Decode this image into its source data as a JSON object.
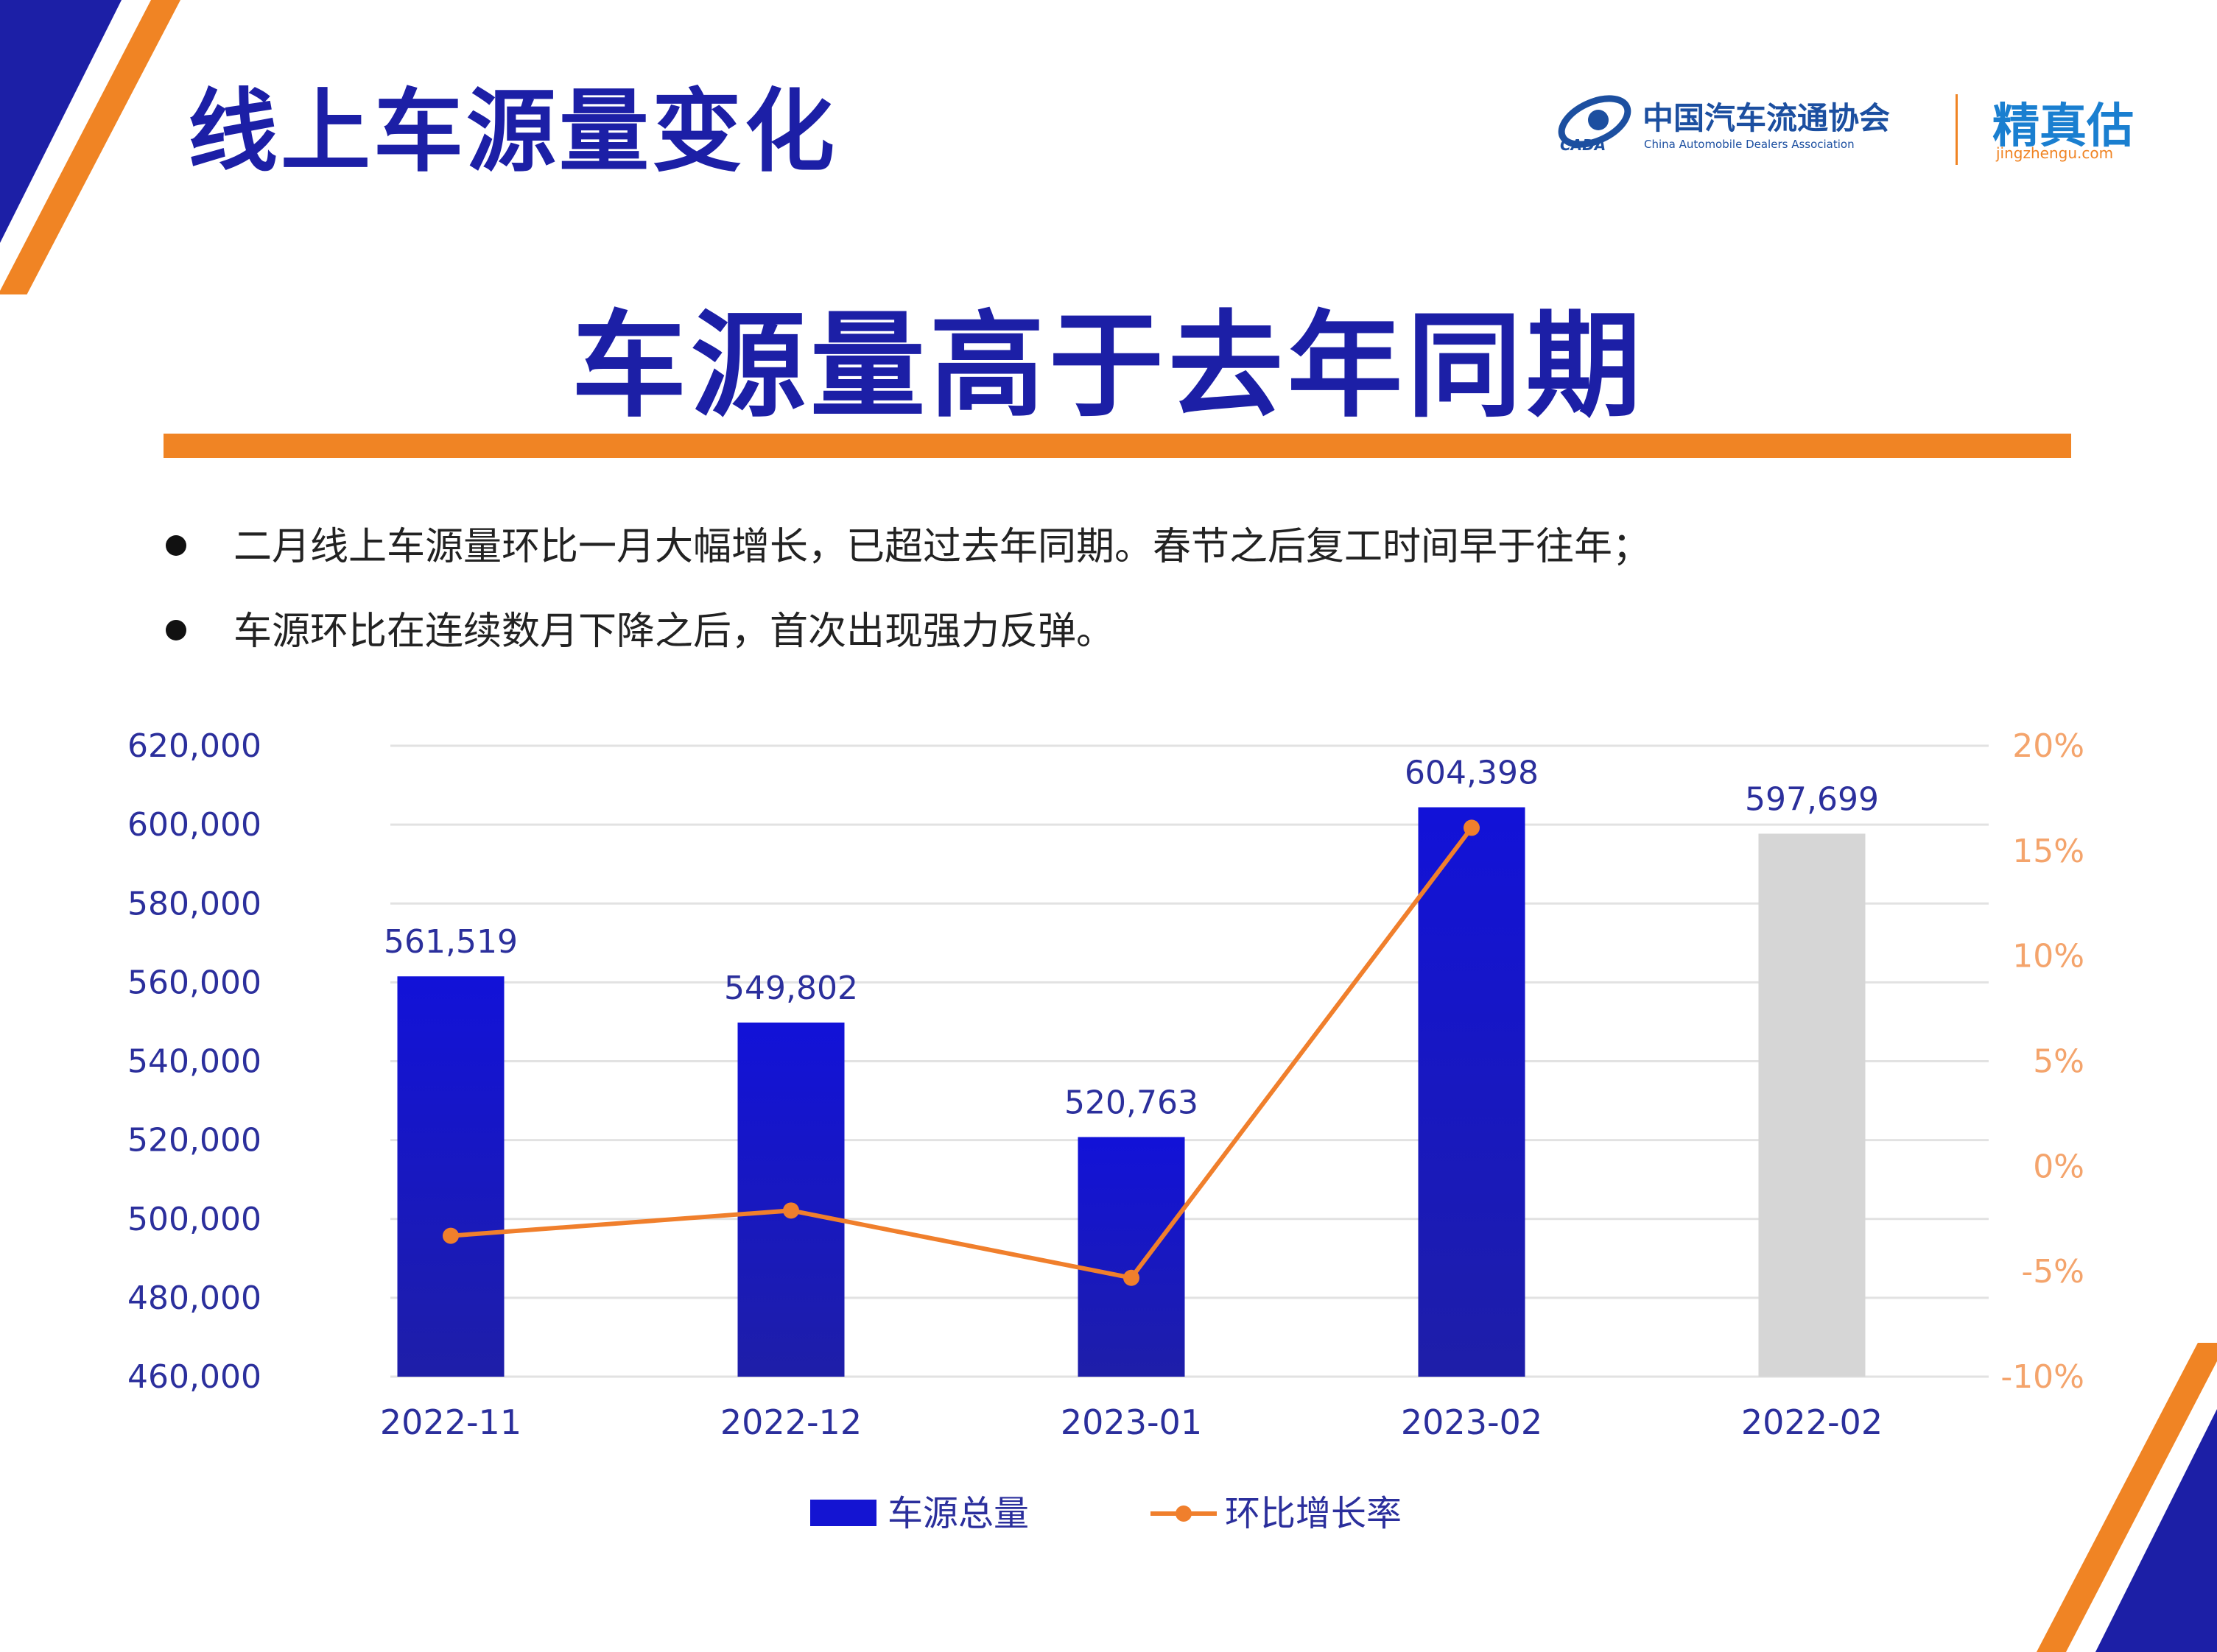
{
  "slide": {
    "title": "线上车源量变化",
    "headline": "车源量高于去年同期",
    "bullets": [
      "二月线上车源量环比一月大幅增长，已超过去年同期。春节之后复工时间早于往年；",
      "车源环比在连续数月下降之后，首次出现强力反弹。"
    ]
  },
  "logos": {
    "cada_cn": "中国汽车流通协会",
    "cada_en": "China Automobile Dealers Association",
    "cada_mark": "CADA",
    "jzg_cn": "精真估",
    "jzg_url": "jingzhengu.com"
  },
  "colors": {
    "title_blue": "#1c1fa6",
    "bar_blue": "#1414d2",
    "bar_grey": "#d6d6d6",
    "line_orange": "#f07f2c",
    "rule_orange": "#f08424"
  },
  "chart_data": {
    "type": "bar",
    "categories": [
      "2022-11",
      "2022-12",
      "2023-01",
      "2023-02",
      "2022-02"
    ],
    "series": [
      {
        "name": "车源总量",
        "type": "bar",
        "axis": "left",
        "values": [
          561519,
          549802,
          520763,
          604398,
          597699
        ],
        "labels": [
          "561,519",
          "549,802",
          "520,763",
          "604,398",
          "597,699"
        ]
      },
      {
        "name": "环比增长率",
        "type": "line",
        "axis": "right",
        "values": [
          -3.3,
          -2.1,
          -5.3,
          16.1,
          null
        ]
      }
    ],
    "y_left": {
      "range": [
        460000,
        620000
      ],
      "ticks": [
        "460,000",
        "480,000",
        "500,000",
        "520,000",
        "540,000",
        "560,000",
        "580,000",
        "600,000",
        "620,000"
      ]
    },
    "y_right": {
      "range": [
        -10,
        20
      ],
      "ticks": [
        "-10%",
        "-5%",
        "0%",
        "5%",
        "10%",
        "15%",
        "20%"
      ]
    },
    "grid": true,
    "legend_position": "bottom-center"
  }
}
